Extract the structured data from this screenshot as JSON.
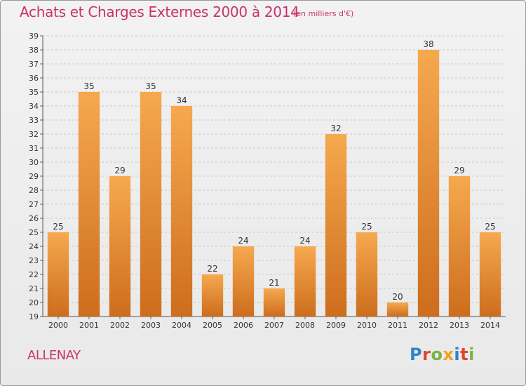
{
  "header": {
    "title": "Achats et Charges Externes 2000 à 2014",
    "subtitle": "(en milliers d'€)"
  },
  "footer": {
    "commune": "ALLENAY",
    "brand_logo": "Proxiti"
  },
  "colors": {
    "accent": "#c8336d",
    "bar_light": "#f6a94f",
    "bar_dark": "#cd6d1d"
  },
  "chart_data": {
    "type": "bar",
    "title": "Achats et Charges Externes 2000 à 2014",
    "subtitle": "(en milliers d'€)",
    "xlabel": "",
    "ylabel": "",
    "categories": [
      "2000",
      "2001",
      "2002",
      "2003",
      "2004",
      "2005",
      "2006",
      "2007",
      "2008",
      "2009",
      "2010",
      "2011",
      "2012",
      "2013",
      "2014"
    ],
    "values": [
      25,
      35,
      29,
      35,
      34,
      22,
      24,
      21,
      24,
      32,
      25,
      20,
      38,
      29,
      25
    ],
    "ylim": [
      19,
      39
    ],
    "yticks": [
      19,
      20,
      21,
      22,
      23,
      24,
      25,
      26,
      27,
      28,
      29,
      30,
      31,
      32,
      33,
      34,
      35,
      36,
      37,
      38,
      39
    ],
    "grid": true,
    "legend": "none"
  }
}
